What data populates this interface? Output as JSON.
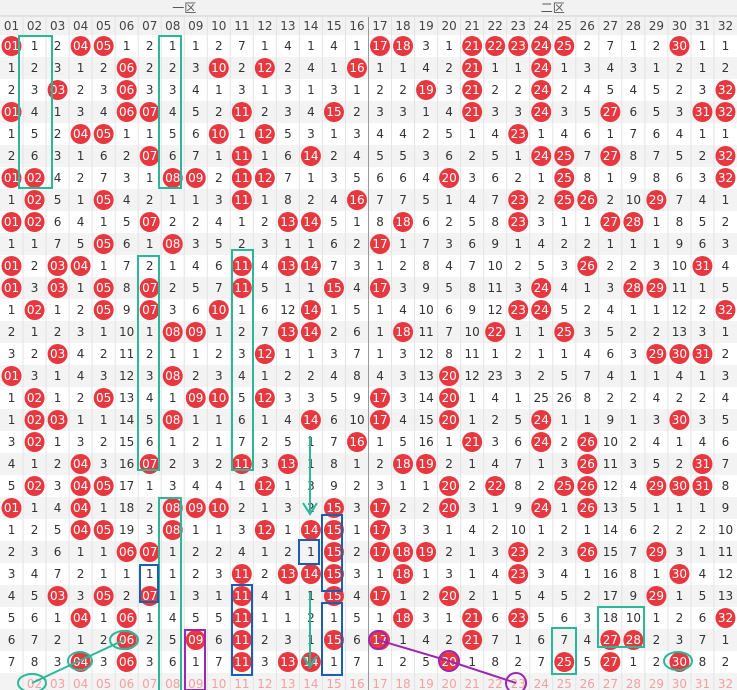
{
  "zones": [
    "一区",
    "二区"
  ],
  "columns": [
    "01",
    "02",
    "03",
    "04",
    "05",
    "06",
    "07",
    "08",
    "09",
    "10",
    "11",
    "12",
    "13",
    "14",
    "15",
    "16",
    "17",
    "18",
    "19",
    "20",
    "21",
    "22",
    "23",
    "24",
    "25",
    "26",
    "27",
    "28",
    "29",
    "30",
    "31",
    "32"
  ],
  "rows": [
    [
      "01",
      "1",
      "2",
      "04",
      "05",
      "1",
      "2",
      "1",
      "1",
      "2",
      "7",
      "1",
      "4",
      "1",
      "4",
      "1",
      "17",
      "18",
      "3",
      "1",
      "21",
      "22",
      "23",
      "24",
      "25",
      "2",
      "7",
      "1",
      "2",
      "30",
      "1",
      "1"
    ],
    [
      "1",
      "2",
      "3",
      "1",
      "2",
      "06",
      "2",
      "2",
      "3",
      "10",
      "2",
      "12",
      "2",
      "4",
      "1",
      "16",
      "1",
      "1",
      "4",
      "2",
      "21",
      "1",
      "1",
      "24",
      "1",
      "3",
      "4",
      "3",
      "1",
      "2",
      "1",
      "2"
    ],
    [
      "2",
      "3",
      "03",
      "2",
      "3",
      "06",
      "3",
      "3",
      "4",
      "1",
      "3",
      "1",
      "3",
      "1",
      "3",
      "1",
      "2",
      "2",
      "19",
      "3",
      "21",
      "2",
      "2",
      "24",
      "2",
      "4",
      "5",
      "4",
      "5",
      "2",
      "3",
      "32"
    ],
    [
      "01",
      "4",
      "1",
      "3",
      "4",
      "06",
      "07",
      "4",
      "5",
      "2",
      "11",
      "2",
      "3",
      "4",
      "15",
      "2",
      "3",
      "3",
      "1",
      "4",
      "21",
      "3",
      "3",
      "24",
      "3",
      "5",
      "27",
      "6",
      "5",
      "3",
      "31",
      "32"
    ],
    [
      "1",
      "5",
      "2",
      "04",
      "05",
      "1",
      "1",
      "5",
      "6",
      "10",
      "1",
      "12",
      "5",
      "3",
      "1",
      "3",
      "4",
      "4",
      "2",
      "5",
      "1",
      "4",
      "23",
      "1",
      "4",
      "6",
      "1",
      "7",
      "6",
      "4",
      "1",
      "1"
    ],
    [
      "2",
      "6",
      "3",
      "1",
      "6",
      "2",
      "07",
      "6",
      "7",
      "1",
      "11",
      "1",
      "6",
      "14",
      "2",
      "4",
      "5",
      "5",
      "3",
      "6",
      "2",
      "5",
      "1",
      "24",
      "25",
      "7",
      "27",
      "8",
      "7",
      "5",
      "2",
      "32"
    ],
    [
      "01",
      "02",
      "4",
      "2",
      "7",
      "3",
      "1",
      "08",
      "09",
      "2",
      "11",
      "12",
      "7",
      "1",
      "3",
      "5",
      "6",
      "6",
      "4",
      "20",
      "3",
      "6",
      "2",
      "1",
      "25",
      "8",
      "1",
      "9",
      "8",
      "6",
      "3",
      "32"
    ],
    [
      "1",
      "02",
      "5",
      "1",
      "05",
      "4",
      "2",
      "1",
      "1",
      "3",
      "11",
      "1",
      "8",
      "2",
      "4",
      "16",
      "7",
      "7",
      "5",
      "1",
      "4",
      "7",
      "23",
      "2",
      "25",
      "26",
      "2",
      "10",
      "29",
      "7",
      "4",
      "1"
    ],
    [
      "01",
      "02",
      "6",
      "4",
      "1",
      "5",
      "07",
      "2",
      "2",
      "4",
      "1",
      "2",
      "13",
      "14",
      "5",
      "1",
      "8",
      "18",
      "6",
      "2",
      "5",
      "8",
      "23",
      "3",
      "1",
      "1",
      "27",
      "28",
      "1",
      "8",
      "5",
      "2"
    ],
    [
      "1",
      "1",
      "7",
      "5",
      "05",
      "6",
      "1",
      "08",
      "3",
      "5",
      "2",
      "3",
      "1",
      "1",
      "6",
      "2",
      "17",
      "1",
      "7",
      "3",
      "6",
      "9",
      "1",
      "4",
      "2",
      "2",
      "1",
      "1",
      "1",
      "9",
      "6",
      "3"
    ],
    [
      "01",
      "2",
      "03",
      "04",
      "1",
      "7",
      "2",
      "1",
      "4",
      "6",
      "11",
      "4",
      "13",
      "14",
      "7",
      "3",
      "1",
      "2",
      "8",
      "4",
      "7",
      "10",
      "2",
      "5",
      "3",
      "26",
      "2",
      "2",
      "3",
      "10",
      "31",
      "4"
    ],
    [
      "01",
      "3",
      "03",
      "1",
      "05",
      "8",
      "07",
      "2",
      "5",
      "7",
      "11",
      "5",
      "1",
      "1",
      "15",
      "4",
      "17",
      "3",
      "9",
      "5",
      "8",
      "11",
      "3",
      "24",
      "4",
      "1",
      "3",
      "28",
      "29",
      "11",
      "1",
      "5"
    ],
    [
      "1",
      "02",
      "1",
      "2",
      "05",
      "9",
      "07",
      "3",
      "6",
      "10",
      "1",
      "6",
      "12",
      "14",
      "1",
      "5",
      "1",
      "4",
      "10",
      "6",
      "9",
      "12",
      "23",
      "24",
      "5",
      "2",
      "4",
      "1",
      "1",
      "12",
      "2",
      "32"
    ],
    [
      "2",
      "1",
      "2",
      "3",
      "1",
      "10",
      "1",
      "08",
      "09",
      "1",
      "2",
      "7",
      "13",
      "14",
      "2",
      "6",
      "1",
      "18",
      "11",
      "7",
      "10",
      "22",
      "1",
      "1",
      "25",
      "3",
      "5",
      "2",
      "2",
      "13",
      "3",
      "1"
    ],
    [
      "3",
      "2",
      "03",
      "4",
      "2",
      "11",
      "2",
      "1",
      "1",
      "2",
      "3",
      "12",
      "1",
      "1",
      "3",
      "7",
      "1",
      "3",
      "12",
      "8",
      "11",
      "1",
      "2",
      "1",
      "1",
      "4",
      "6",
      "3",
      "29",
      "30",
      "31",
      "2"
    ],
    [
      "01",
      "3",
      "1",
      "4",
      "3",
      "12",
      "3",
      "08",
      "2",
      "3",
      "4",
      "1",
      "2",
      "2",
      "4",
      "8",
      "4",
      "3",
      "13",
      "20",
      "12",
      "23",
      "3",
      "2",
      "5",
      "7",
      "4",
      "1",
      "1",
      "4",
      "1",
      "3"
    ],
    [
      "1",
      "02",
      "1",
      "2",
      "05",
      "13",
      "4",
      "1",
      "09",
      "10",
      "5",
      "12",
      "3",
      "3",
      "5",
      "9",
      "17",
      "3",
      "14",
      "20",
      "1",
      "4",
      "1",
      "25",
      "26",
      "8",
      "2",
      "2",
      "4",
      "2",
      "2",
      "4"
    ],
    [
      "1",
      "02",
      "03",
      "1",
      "1",
      "14",
      "5",
      "08",
      "1",
      "1",
      "6",
      "1",
      "4",
      "14",
      "6",
      "10",
      "17",
      "4",
      "15",
      "20",
      "1",
      "2",
      "5",
      "24",
      "1",
      "1",
      "9",
      "1",
      "3",
      "30",
      "3",
      "5"
    ],
    [
      "3",
      "02",
      "1",
      "3",
      "2",
      "15",
      "6",
      "1",
      "2",
      "1",
      "7",
      "2",
      "5",
      "1",
      "7",
      "16",
      "1",
      "5",
      "16",
      "1",
      "21",
      "3",
      "6",
      "24",
      "2",
      "26",
      "10",
      "2",
      "4",
      "1",
      "4",
      "6"
    ],
    [
      "4",
      "1",
      "2",
      "04",
      "3",
      "16",
      "07",
      "2",
      "3",
      "2",
      "11",
      "3",
      "13",
      "1",
      "8",
      "1",
      "2",
      "18",
      "19",
      "2",
      "1",
      "4",
      "7",
      "1",
      "3",
      "26",
      "11",
      "3",
      "5",
      "2",
      "31",
      "7"
    ],
    [
      "5",
      "02",
      "3",
      "04",
      "05",
      "17",
      "1",
      "3",
      "4",
      "4",
      "1",
      "12",
      "1",
      "3",
      "9",
      "2",
      "3",
      "1",
      "1",
      "20",
      "2",
      "22",
      "8",
      "2",
      "25",
      "26",
      "12",
      "4",
      "29",
      "30",
      "31",
      "8"
    ],
    [
      "01",
      "1",
      "4",
      "04",
      "1",
      "18",
      "2",
      "08",
      "09",
      "10",
      "2",
      "1",
      "3",
      "2",
      "15",
      "3",
      "17",
      "2",
      "2",
      "20",
      "3",
      "1",
      "9",
      "24",
      "1",
      "26",
      "13",
      "5",
      "1",
      "1",
      "1",
      "9"
    ],
    [
      "1",
      "2",
      "5",
      "04",
      "05",
      "19",
      "3",
      "08",
      "1",
      "1",
      "3",
      "12",
      "1",
      "14",
      "15",
      "1",
      "17",
      "3",
      "3",
      "1",
      "4",
      "2",
      "10",
      "1",
      "2",
      "1",
      "14",
      "6",
      "2",
      "2",
      "2",
      "10"
    ],
    [
      "2",
      "3",
      "6",
      "1",
      "1",
      "06",
      "07",
      "1",
      "2",
      "2",
      "4",
      "1",
      "2",
      "1",
      "15",
      "2",
      "17",
      "18",
      "19",
      "2",
      "1",
      "3",
      "23",
      "2",
      "3",
      "26",
      "15",
      "7",
      "29",
      "3",
      "1",
      "11"
    ],
    [
      "3",
      "4",
      "7",
      "2",
      "1",
      "1",
      "1",
      "1",
      "2",
      "3",
      "11",
      "2",
      "13",
      "14",
      "15",
      "3",
      "1",
      "18",
      "1",
      "3",
      "1",
      "4",
      "23",
      "3",
      "4",
      "1",
      "16",
      "8",
      "1",
      "30",
      "4",
      "12"
    ],
    [
      "4",
      "5",
      "03",
      "3",
      "05",
      "2",
      "07",
      "1",
      "3",
      "1",
      "11",
      "4",
      "1",
      "1",
      "15",
      "4",
      "17",
      "1",
      "2",
      "20",
      "2",
      "1",
      "5",
      "4",
      "5",
      "2",
      "17",
      "9",
      "29",
      "1",
      "5",
      "13"
    ],
    [
      "5",
      "6",
      "1",
      "04",
      "1",
      "06",
      "1",
      "4",
      "5",
      "5",
      "11",
      "1",
      "1",
      "2",
      "1",
      "5",
      "1",
      "18",
      "3",
      "1",
      "21",
      "6",
      "23",
      "5",
      "6",
      "3",
      "18",
      "10",
      "1",
      "2",
      "6",
      "32"
    ],
    [
      "6",
      "7",
      "2",
      "1",
      "2",
      "06",
      "2",
      "5",
      "09",
      "6",
      "11",
      "2",
      "3",
      "1",
      "15",
      "6",
      "17",
      "1",
      "4",
      "2",
      "21",
      "7",
      "1",
      "6",
      "7",
      "4",
      "27",
      "28",
      "2",
      "3",
      "7",
      "1"
    ],
    [
      "7",
      "8",
      "3",
      "04",
      "3",
      "06",
      "3",
      "6",
      "1",
      "7",
      "11",
      "3",
      "13",
      "14",
      "1",
      "7",
      "1",
      "2",
      "5",
      "20",
      "1",
      "8",
      "2",
      "7",
      "25",
      "5",
      "27",
      "1",
      "2",
      "30",
      "8",
      "2"
    ]
  ],
  "footer": [
    null,
    "02",
    "03",
    "04",
    "05",
    "06",
    "07",
    "08",
    "09",
    "10",
    "11",
    "12",
    "13",
    "14",
    "15",
    "16",
    "17",
    "18",
    "19",
    "20",
    "21",
    "22",
    "23",
    "24",
    "25",
    "26",
    "27",
    "28",
    "29",
    "30",
    "31",
    "32"
  ]
}
